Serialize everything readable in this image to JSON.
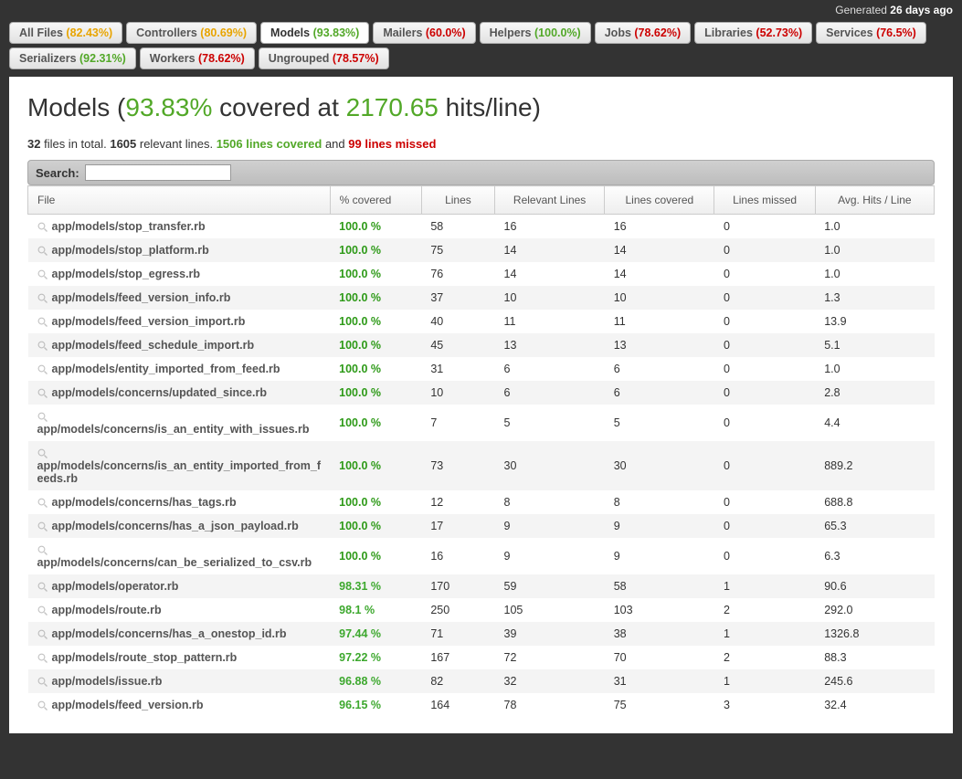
{
  "generated": {
    "prefix": "Generated ",
    "value": "26 days ago"
  },
  "tabs": [
    {
      "label": "All Files",
      "pct": "(82.43%)",
      "cls": "pct-yellow",
      "active": false
    },
    {
      "label": "Controllers",
      "pct": "(80.69%)",
      "cls": "pct-yellow",
      "active": false
    },
    {
      "label": "Models",
      "pct": "(93.83%)",
      "cls": "pct-green",
      "active": true
    },
    {
      "label": "Mailers",
      "pct": "(60.0%)",
      "cls": "pct-red",
      "active": false
    },
    {
      "label": "Helpers",
      "pct": "(100.0%)",
      "cls": "pct-green",
      "active": false
    },
    {
      "label": "Jobs",
      "pct": "(78.62%)",
      "cls": "pct-red",
      "active": false
    },
    {
      "label": "Libraries",
      "pct": "(52.73%)",
      "cls": "pct-red",
      "active": false
    },
    {
      "label": "Services",
      "pct": "(76.5%)",
      "cls": "pct-red",
      "active": false
    },
    {
      "label": "Serializers",
      "pct": "(92.31%)",
      "cls": "pct-green",
      "active": false
    },
    {
      "label": "Workers",
      "pct": "(78.62%)",
      "cls": "pct-red",
      "active": false
    },
    {
      "label": "Ungrouped",
      "pct": "(78.57%)",
      "cls": "pct-red",
      "active": false
    }
  ],
  "title": {
    "group": "Models",
    "open": " (",
    "pct": "93.83%",
    "mid": " covered at ",
    "hits": "2170.65",
    "suffix": " hits/line)"
  },
  "summary": {
    "files_n": "32",
    "files_txt": " files in total. ",
    "relevant_n": "1605",
    "relevant_txt": " relevant lines. ",
    "covered_n": "1506",
    "covered_txt": " lines covered",
    "and": " and ",
    "missed_n": "99",
    "missed_txt": " lines missed"
  },
  "search": {
    "label": "Search:",
    "value": ""
  },
  "columns": [
    "File",
    "% covered",
    "Lines",
    "Relevant Lines",
    "Lines covered",
    "Lines missed",
    "Avg. Hits / Line"
  ],
  "rows": [
    {
      "file": "app/models/stop_transfer.rb",
      "pct": "100.0 %",
      "lines": "58",
      "rel": "16",
      "cov": "16",
      "miss": "0",
      "avg": "1.0",
      "pcls": "pct-100"
    },
    {
      "file": "app/models/stop_platform.rb",
      "pct": "100.0 %",
      "lines": "75",
      "rel": "14",
      "cov": "14",
      "miss": "0",
      "avg": "1.0",
      "pcls": "pct-100"
    },
    {
      "file": "app/models/stop_egress.rb",
      "pct": "100.0 %",
      "lines": "76",
      "rel": "14",
      "cov": "14",
      "miss": "0",
      "avg": "1.0",
      "pcls": "pct-100"
    },
    {
      "file": "app/models/feed_version_info.rb",
      "pct": "100.0 %",
      "lines": "37",
      "rel": "10",
      "cov": "10",
      "miss": "0",
      "avg": "1.3",
      "pcls": "pct-100"
    },
    {
      "file": "app/models/feed_version_import.rb",
      "pct": "100.0 %",
      "lines": "40",
      "rel": "11",
      "cov": "11",
      "miss": "0",
      "avg": "13.9",
      "pcls": "pct-100"
    },
    {
      "file": "app/models/feed_schedule_import.rb",
      "pct": "100.0 %",
      "lines": "45",
      "rel": "13",
      "cov": "13",
      "miss": "0",
      "avg": "5.1",
      "pcls": "pct-100"
    },
    {
      "file": "app/models/entity_imported_from_feed.rb",
      "pct": "100.0 %",
      "lines": "31",
      "rel": "6",
      "cov": "6",
      "miss": "0",
      "avg": "1.0",
      "pcls": "pct-100"
    },
    {
      "file": "app/models/concerns/updated_since.rb",
      "pct": "100.0 %",
      "lines": "10",
      "rel": "6",
      "cov": "6",
      "miss": "0",
      "avg": "2.8",
      "pcls": "pct-100"
    },
    {
      "file": "app/models/concerns/is_an_entity_with_issues.rb",
      "pct": "100.0 %",
      "lines": "7",
      "rel": "5",
      "cov": "5",
      "miss": "0",
      "avg": "4.4",
      "pcls": "pct-100"
    },
    {
      "file": "app/models/concerns/is_an_entity_imported_from_feeds.rb",
      "pct": "100.0 %",
      "lines": "73",
      "rel": "30",
      "cov": "30",
      "miss": "0",
      "avg": "889.2",
      "pcls": "pct-100"
    },
    {
      "file": "app/models/concerns/has_tags.rb",
      "pct": "100.0 %",
      "lines": "12",
      "rel": "8",
      "cov": "8",
      "miss": "0",
      "avg": "688.8",
      "pcls": "pct-100"
    },
    {
      "file": "app/models/concerns/has_a_json_payload.rb",
      "pct": "100.0 %",
      "lines": "17",
      "rel": "9",
      "cov": "9",
      "miss": "0",
      "avg": "65.3",
      "pcls": "pct-100"
    },
    {
      "file": "app/models/concerns/can_be_serialized_to_csv.rb",
      "pct": "100.0 %",
      "lines": "16",
      "rel": "9",
      "cov": "9",
      "miss": "0",
      "avg": "6.3",
      "pcls": "pct-100"
    },
    {
      "file": "app/models/operator.rb",
      "pct": "98.31 %",
      "lines": "170",
      "rel": "59",
      "cov": "58",
      "miss": "1",
      "avg": "90.6",
      "pcls": "pct-high"
    },
    {
      "file": "app/models/route.rb",
      "pct": "98.1 %",
      "lines": "250",
      "rel": "105",
      "cov": "103",
      "miss": "2",
      "avg": "292.0",
      "pcls": "pct-high"
    },
    {
      "file": "app/models/concerns/has_a_onestop_id.rb",
      "pct": "97.44 %",
      "lines": "71",
      "rel": "39",
      "cov": "38",
      "miss": "1",
      "avg": "1326.8",
      "pcls": "pct-high"
    },
    {
      "file": "app/models/route_stop_pattern.rb",
      "pct": "97.22 %",
      "lines": "167",
      "rel": "72",
      "cov": "70",
      "miss": "2",
      "avg": "88.3",
      "pcls": "pct-high"
    },
    {
      "file": "app/models/issue.rb",
      "pct": "96.88 %",
      "lines": "82",
      "rel": "32",
      "cov": "31",
      "miss": "1",
      "avg": "245.6",
      "pcls": "pct-high"
    },
    {
      "file": "app/models/feed_version.rb",
      "pct": "96.15 %",
      "lines": "164",
      "rel": "78",
      "cov": "75",
      "miss": "3",
      "avg": "32.4",
      "pcls": "pct-high"
    }
  ]
}
